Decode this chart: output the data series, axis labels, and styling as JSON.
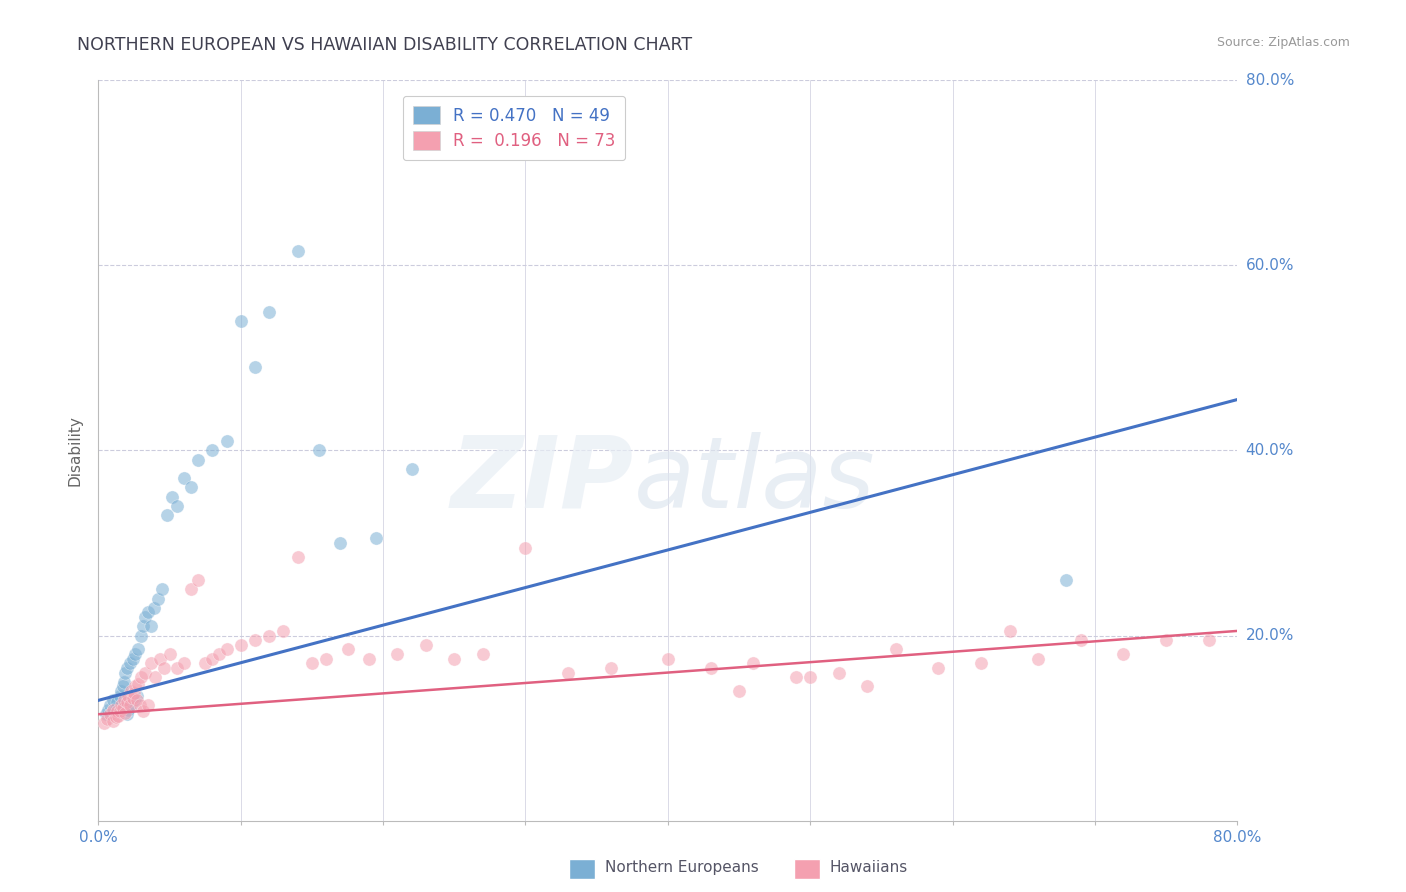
{
  "title": "NORTHERN EUROPEAN VS HAWAIIAN DISABILITY CORRELATION CHART",
  "source_text": "Source: ZipAtlas.com",
  "ylabel": "Disability",
  "xlim": [
    0.0,
    0.8
  ],
  "ylim": [
    0.0,
    0.8
  ],
  "ytick_positions": [
    0.0,
    0.2,
    0.4,
    0.6,
    0.8
  ],
  "ytick_labels": [
    "",
    "20.0%",
    "40.0%",
    "60.0%",
    "80.0%"
  ],
  "xtick_positions": [
    0.0,
    0.1,
    0.2,
    0.3,
    0.4,
    0.5,
    0.6,
    0.7,
    0.8
  ],
  "xtick_labels": [
    "0.0%",
    "",
    "",
    "",
    "",
    "",
    "",
    "",
    "80.0%"
  ],
  "blue_color": "#7BAFD4",
  "pink_color": "#F4A0B0",
  "blue_line_color": "#4472C4",
  "pink_line_color": "#E06080",
  "legend_R_blue": "0.470",
  "legend_N_blue": "49",
  "legend_R_pink": "0.196",
  "legend_N_pink": "73",
  "blue_trend_x0": 0.0,
  "blue_trend_y0": 0.13,
  "blue_trend_x1": 0.8,
  "blue_trend_y1": 0.455,
  "pink_trend_x0": 0.0,
  "pink_trend_y0": 0.115,
  "pink_trend_x1": 0.8,
  "pink_trend_y1": 0.205,
  "blue_x": [
    0.005,
    0.007,
    0.008,
    0.01,
    0.01,
    0.012,
    0.013,
    0.015,
    0.015,
    0.016,
    0.017,
    0.018,
    0.018,
    0.019,
    0.02,
    0.02,
    0.021,
    0.022,
    0.023,
    0.024,
    0.025,
    0.026,
    0.027,
    0.028,
    0.03,
    0.031,
    0.033,
    0.035,
    0.037,
    0.039,
    0.042,
    0.045,
    0.048,
    0.052,
    0.055,
    0.06,
    0.065,
    0.07,
    0.08,
    0.09,
    0.1,
    0.11,
    0.12,
    0.14,
    0.155,
    0.17,
    0.195,
    0.22,
    0.68
  ],
  "blue_y": [
    0.115,
    0.12,
    0.125,
    0.118,
    0.13,
    0.122,
    0.128,
    0.119,
    0.135,
    0.14,
    0.145,
    0.15,
    0.122,
    0.16,
    0.115,
    0.165,
    0.12,
    0.17,
    0.125,
    0.175,
    0.13,
    0.18,
    0.135,
    0.185,
    0.2,
    0.21,
    0.22,
    0.225,
    0.21,
    0.23,
    0.24,
    0.25,
    0.33,
    0.35,
    0.34,
    0.37,
    0.36,
    0.39,
    0.4,
    0.41,
    0.54,
    0.49,
    0.55,
    0.615,
    0.4,
    0.3,
    0.305,
    0.38,
    0.26
  ],
  "pink_x": [
    0.004,
    0.006,
    0.008,
    0.01,
    0.01,
    0.012,
    0.013,
    0.014,
    0.015,
    0.016,
    0.017,
    0.018,
    0.019,
    0.02,
    0.021,
    0.022,
    0.023,
    0.024,
    0.025,
    0.026,
    0.027,
    0.028,
    0.029,
    0.03,
    0.031,
    0.033,
    0.035,
    0.037,
    0.04,
    0.043,
    0.046,
    0.05,
    0.055,
    0.06,
    0.065,
    0.07,
    0.075,
    0.08,
    0.085,
    0.09,
    0.1,
    0.11,
    0.12,
    0.13,
    0.14,
    0.15,
    0.16,
    0.175,
    0.19,
    0.21,
    0.23,
    0.25,
    0.27,
    0.3,
    0.33,
    0.36,
    0.4,
    0.43,
    0.46,
    0.49,
    0.52,
    0.56,
    0.59,
    0.62,
    0.64,
    0.66,
    0.69,
    0.72,
    0.75,
    0.78,
    0.45,
    0.5,
    0.54
  ],
  "pink_y": [
    0.105,
    0.11,
    0.115,
    0.108,
    0.12,
    0.112,
    0.118,
    0.113,
    0.119,
    0.125,
    0.122,
    0.13,
    0.116,
    0.128,
    0.135,
    0.125,
    0.14,
    0.132,
    0.138,
    0.145,
    0.13,
    0.148,
    0.125,
    0.155,
    0.118,
    0.16,
    0.125,
    0.17,
    0.155,
    0.175,
    0.165,
    0.18,
    0.165,
    0.17,
    0.25,
    0.26,
    0.17,
    0.175,
    0.18,
    0.185,
    0.19,
    0.195,
    0.2,
    0.205,
    0.285,
    0.17,
    0.175,
    0.185,
    0.175,
    0.18,
    0.19,
    0.175,
    0.18,
    0.295,
    0.16,
    0.165,
    0.175,
    0.165,
    0.17,
    0.155,
    0.16,
    0.185,
    0.165,
    0.17,
    0.205,
    0.175,
    0.195,
    0.18,
    0.195,
    0.195,
    0.14,
    0.155,
    0.145
  ],
  "background_color": "#FFFFFF",
  "grid_color": "#CCCCDD",
  "title_color": "#404050",
  "tick_color": "#5588CC"
}
